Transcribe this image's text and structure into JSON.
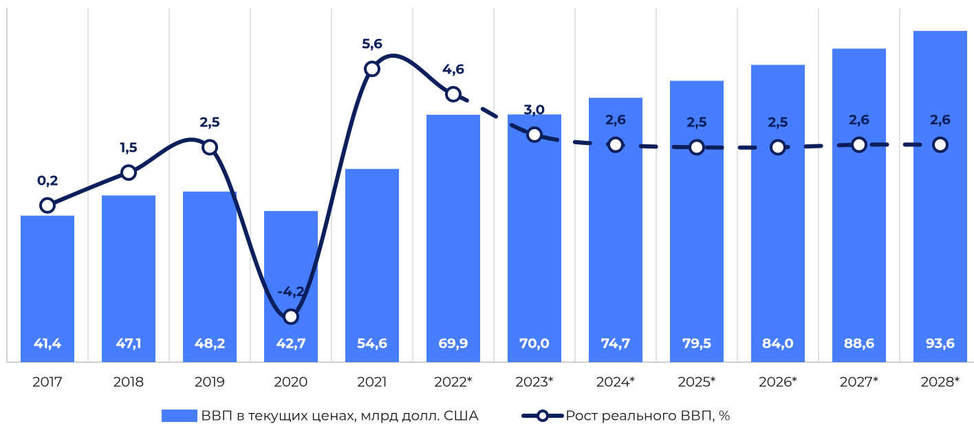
{
  "chart_data": {
    "type": "bar-line",
    "categories": [
      "2017",
      "2018",
      "2019",
      "2020",
      "2021",
      "2022*",
      "2023*",
      "2024*",
      "2025*",
      "2026*",
      "2027*",
      "2028*"
    ],
    "series": [
      {
        "name": "ВВП в текущих ценах, млрд долл. США",
        "type": "bar",
        "color": "#477eff",
        "values": [
          41.4,
          47.1,
          48.2,
          42.7,
          54.6,
          69.9,
          70.0,
          74.7,
          79.5,
          84.0,
          88.6,
          93.6
        ],
        "value_labels": [
          "41,4",
          "47,1",
          "48,2",
          "42,7",
          "54,6",
          "69,9",
          "70,0",
          "74,7",
          "79,5",
          "84,0",
          "88,6",
          "93,6"
        ]
      },
      {
        "name": "Рост реального ВВП, %",
        "type": "line",
        "axis": "y2",
        "color": "#0b1f5c",
        "dashed_from": "2022*",
        "values": [
          0.2,
          1.5,
          2.5,
          -4.2,
          5.6,
          4.6,
          3.0,
          2.6,
          2.5,
          2.5,
          2.6,
          2.6
        ],
        "value_labels": [
          "0,2",
          "1,5",
          "2,5",
          "-4,2",
          "5,6",
          "4,6",
          "3,0",
          "2,6",
          "2,5",
          "2,5",
          "2,6",
          "2,6"
        ]
      }
    ],
    "ylim": [
      0,
      100
    ],
    "y2lim": [
      -6,
      8
    ],
    "grid": true,
    "legend": "bottom"
  }
}
